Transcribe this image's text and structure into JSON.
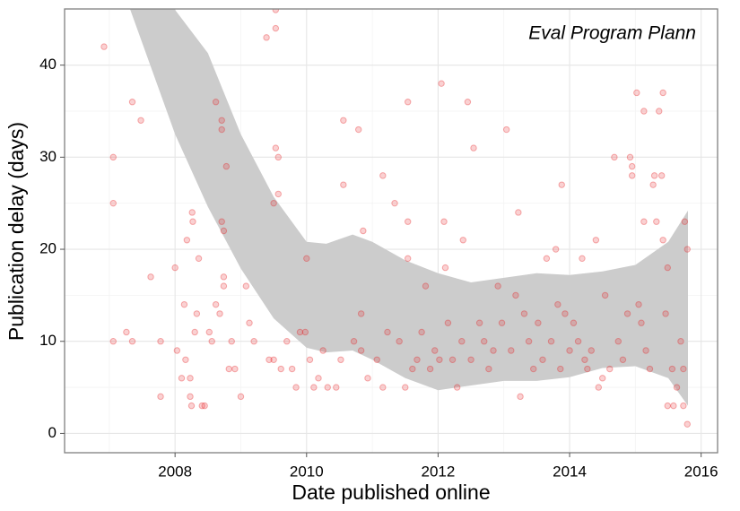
{
  "chart_data": {
    "type": "scatter",
    "annotation": "Eval Program Plann",
    "x_label": "Date published online",
    "y_label": "Publication delay (days)",
    "xlim": [
      2006.32,
      2016.25
    ],
    "ylim": [
      -2.1,
      46.1
    ],
    "xticks": [
      2008,
      2010,
      2012,
      2014,
      2016
    ],
    "yticks": [
      0,
      10,
      20,
      30,
      40
    ],
    "grid": true,
    "color": "#e41a1c",
    "x": [
      2006.92,
      2007.06,
      2007.06,
      2007.06,
      2007.26,
      2007.35,
      2007.35,
      2007.48,
      2007.63,
      2007.78,
      2007.78,
      2008.0,
      2008.03,
      2008.1,
      2008.14,
      2008.16,
      2008.18,
      2008.23,
      2008.23,
      2008.25,
      2008.26,
      2008.27,
      2008.3,
      2008.33,
      2008.36,
      2008.41,
      2008.45,
      2008.52,
      2008.56,
      2008.62,
      2008.62,
      2008.68,
      2008.71,
      2008.71,
      2008.71,
      2008.74,
      2008.74,
      2008.74,
      2008.78,
      2008.82,
      2008.86,
      2008.91,
      2009.0,
      2009.08,
      2009.13,
      2009.2,
      2009.39,
      2009.43,
      2009.5,
      2009.5,
      2009.53,
      2009.53,
      2009.53,
      2009.57,
      2009.57,
      2009.61,
      2009.7,
      2009.78,
      2009.84,
      2009.9,
      2009.98,
      2010.0,
      2010.05,
      2010.11,
      2010.18,
      2010.25,
      2010.32,
      2010.45,
      2010.52,
      2010.56,
      2010.56,
      2010.72,
      2010.79,
      2010.83,
      2010.83,
      2010.86,
      2010.93,
      2011.07,
      2011.16,
      2011.16,
      2011.23,
      2011.34,
      2011.41,
      2011.5,
      2011.54,
      2011.54,
      2011.54,
      2011.61,
      2011.68,
      2011.75,
      2011.81,
      2011.88,
      2011.95,
      2012.02,
      2012.05,
      2012.09,
      2012.11,
      2012.15,
      2012.22,
      2012.29,
      2012.36,
      2012.38,
      2012.45,
      2012.5,
      2012.54,
      2012.63,
      2012.7,
      2012.77,
      2012.84,
      2012.91,
      2012.97,
      2013.04,
      2013.11,
      2013.18,
      2013.22,
      2013.25,
      2013.31,
      2013.38,
      2013.45,
      2013.52,
      2013.59,
      2013.65,
      2013.72,
      2013.79,
      2013.82,
      2013.86,
      2013.88,
      2013.93,
      2014.0,
      2014.06,
      2014.13,
      2014.19,
      2014.23,
      2014.27,
      2014.33,
      2014.4,
      2014.44,
      2014.5,
      2014.54,
      2014.61,
      2014.68,
      2014.74,
      2014.81,
      2014.88,
      2014.92,
      2014.95,
      2014.95,
      2015.02,
      2015.05,
      2015.09,
      2015.13,
      2015.13,
      2015.16,
      2015.22,
      2015.27,
      2015.29,
      2015.32,
      2015.36,
      2015.4,
      2015.42,
      2015.42,
      2015.46,
      2015.49,
      2015.49,
      2015.56,
      2015.58,
      2015.63,
      2015.69,
      2015.73,
      2015.73,
      2015.75,
      2015.79,
      2015.79
    ],
    "values": [
      42,
      30,
      25,
      10,
      11,
      36,
      10,
      34,
      17,
      10,
      4,
      18,
      9,
      6,
      14,
      8,
      21,
      6,
      4,
      3,
      24,
      23,
      11,
      13,
      19,
      3,
      3,
      11,
      10,
      36,
      14,
      13,
      34,
      33,
      23,
      22,
      17,
      16,
      29,
      7,
      10,
      7,
      4,
      16,
      12,
      10,
      43,
      8,
      25,
      8,
      44,
      46,
      31,
      30,
      26,
      7,
      10,
      7,
      5,
      11,
      11,
      19,
      8,
      5,
      6,
      9,
      5,
      5,
      8,
      34,
      27,
      10,
      33,
      13,
      9,
      22,
      6,
      8,
      28,
      5,
      11,
      25,
      10,
      5,
      36,
      23,
      19,
      7,
      8,
      11,
      16,
      7,
      9,
      8,
      38,
      23,
      18,
      12,
      8,
      5,
      10,
      21,
      36,
      8,
      31,
      12,
      10,
      7,
      9,
      16,
      12,
      33,
      9,
      15,
      24,
      4,
      13,
      10,
      7,
      12,
      8,
      19,
      10,
      20,
      14,
      7,
      27,
      13,
      9,
      12,
      10,
      19,
      8,
      7,
      9,
      21,
      5,
      6,
      15,
      7,
      30,
      10,
      8,
      13,
      30,
      29,
      28,
      37,
      14,
      12,
      35,
      23,
      9,
      7,
      27,
      28,
      23,
      35,
      28,
      37,
      21,
      13,
      18,
      3,
      7,
      3,
      5,
      10,
      7,
      3,
      23,
      20,
      1
    ],
    "band": {
      "color": "#cccccc",
      "x": [
        2007.0,
        2007.32,
        2008,
        2008.5,
        2009,
        2009.5,
        2010,
        2010.3,
        2010.7,
        2011,
        2011.5,
        2012,
        2012.5,
        2013,
        2013.5,
        2014,
        2014.5,
        2015,
        2015.5,
        2015.8
      ],
      "upper": [
        75,
        65,
        46,
        41.3,
        32.5,
        25.7,
        20.8,
        20.6,
        21.6,
        20.8,
        18.8,
        17.4,
        16.4,
        16.9,
        17.4,
        17.2,
        17.6,
        18.3,
        20.8,
        24.2
      ],
      "lower": [
        55,
        46,
        32.5,
        24.6,
        17.9,
        12.5,
        9.3,
        8.8,
        9,
        8,
        6,
        4.7,
        5.2,
        5.7,
        5.7,
        6.1,
        7.1,
        7.3,
        6,
        3
      ]
    }
  }
}
